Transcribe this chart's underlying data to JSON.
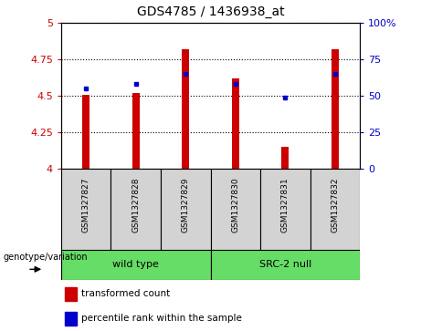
{
  "title": "GDS4785 / 1436938_at",
  "samples": [
    "GSM1327827",
    "GSM1327828",
    "GSM1327829",
    "GSM1327830",
    "GSM1327831",
    "GSM1327832"
  ],
  "red_values": [
    4.51,
    4.52,
    4.82,
    4.62,
    4.15,
    4.82
  ],
  "blue_pct": [
    55,
    58,
    65,
    58,
    49,
    65
  ],
  "ylim_left": [
    4.0,
    5.0
  ],
  "ylim_right": [
    0,
    100
  ],
  "yticks_left": [
    4.0,
    4.25,
    4.5,
    4.75,
    5.0
  ],
  "yticks_right": [
    0,
    25,
    50,
    75,
    100
  ],
  "bar_width": 0.15,
  "bar_color": "#CC0000",
  "dot_color": "#0000CC",
  "bar_bottom": 4.0,
  "plot_bg_color": "#ffffff",
  "tick_color_left": "#CC0000",
  "tick_color_right": "#0000CC",
  "sample_bg_color": "#d3d3d3",
  "green_color": "#66DD66",
  "legend_red_label": "transformed count",
  "legend_blue_label": "percentile rank within the sample",
  "genotype_label": "genotype/variation",
  "wild_type_label": "wild type",
  "src2_label": "SRC-2 null"
}
